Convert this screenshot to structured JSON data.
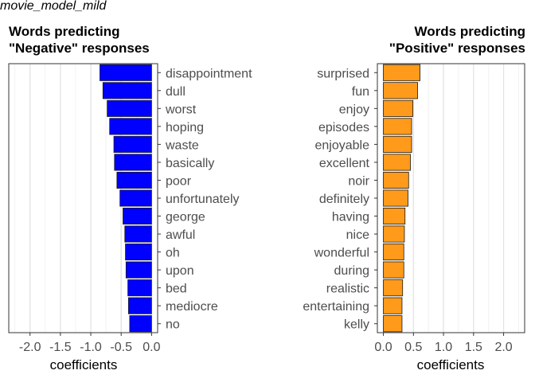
{
  "figure_title": "movie_model_mild",
  "chart_data": [
    {
      "type": "bar",
      "orientation": "horizontal",
      "title_lines": [
        "Words predicting",
        "\"Negative\" responses"
      ],
      "xlabel": "coefficients",
      "ylabel": "",
      "xlim": [
        -2.35,
        0.1
      ],
      "xticks": [
        -2.0,
        -1.5,
        -1.0,
        -0.5,
        0.0
      ],
      "xtick_labels": [
        "-2.0",
        "-1.5",
        "-1.0",
        "-0.5",
        "0.0"
      ],
      "grid": true,
      "labels_side": "right",
      "bar_color": "#0000FF",
      "categories": [
        "disappointment",
        "dull",
        "worst",
        "hoping",
        "waste",
        "basically",
        "poor",
        "unfortunately",
        "george",
        "awful",
        "oh",
        "upon",
        "bed",
        "mediocre",
        "no"
      ],
      "values": [
        -0.85,
        -0.8,
        -0.73,
        -0.69,
        -0.62,
        -0.61,
        -0.57,
        -0.52,
        -0.47,
        -0.44,
        -0.43,
        -0.42,
        -0.39,
        -0.38,
        -0.36
      ]
    },
    {
      "type": "bar",
      "orientation": "horizontal",
      "title_lines": [
        "Words predicting",
        "\"Positive\" responses"
      ],
      "xlabel": "coefficients",
      "ylabel": "",
      "xlim": [
        -0.1,
        2.35
      ],
      "xticks": [
        0.0,
        0.5,
        1.0,
        1.5,
        2.0
      ],
      "xtick_labels": [
        "0.0",
        "0.5",
        "1.0",
        "1.5",
        "2.0"
      ],
      "grid": true,
      "labels_side": "left",
      "bar_color": "#FF9A1A",
      "categories": [
        "surprised",
        "fun",
        "enjoy",
        "episodes",
        "enjoyable",
        "excellent",
        "noir",
        "definitely",
        "having",
        "nice",
        "wonderful",
        "during",
        "realistic",
        "entertaining",
        "kelly"
      ],
      "values": [
        0.61,
        0.57,
        0.49,
        0.47,
        0.47,
        0.45,
        0.42,
        0.41,
        0.36,
        0.35,
        0.34,
        0.34,
        0.32,
        0.31,
        0.31
      ]
    }
  ]
}
